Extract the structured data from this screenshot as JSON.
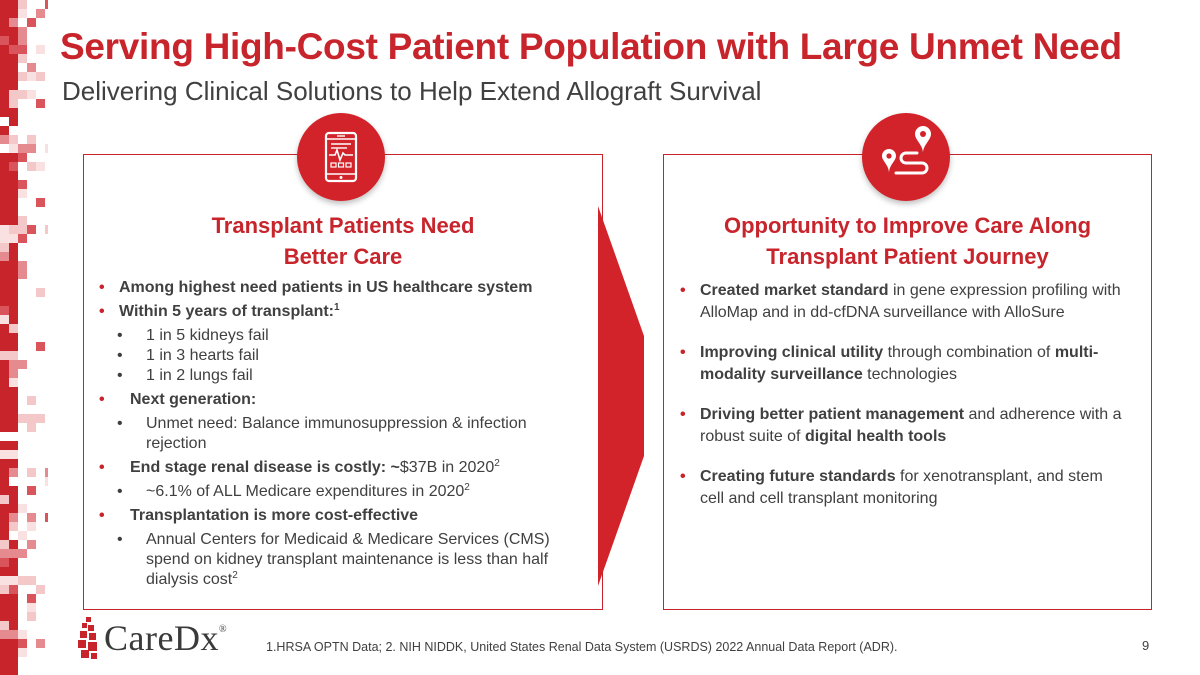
{
  "header": {
    "title": "Serving High-Cost Patient Population with Large Unmet Need",
    "subtitle": "Delivering Clinical Solutions to Help Extend Allograft Survival"
  },
  "left_panel": {
    "heading_line1": "Transplant Patients Need",
    "heading_line2": "Better Care",
    "icon": "mobile-health-monitor-icon",
    "items": {
      "i1": "Among highest need patients in US healthcare system",
      "i2": "Within 5 years of transplant:",
      "i2_sup": "1",
      "i2a": "1 in 5  kidneys fail",
      "i2b": "1 in 3  hearts fail",
      "i2c": "1 in 2  lungs fail",
      "i3": "Next generation:",
      "i3a": "Unmet need: Balance immunosuppression & infection rejection",
      "i4_bold": "End stage renal disease is costly: ~",
      "i4_rest": "$37B in 2020",
      "i4_sup": "2",
      "i4a": "~6.1% of ALL Medicare expenditures in 2020",
      "i4a_sup": "2",
      "i5": "Transplantation is more cost-effective",
      "i5a": "Annual Centers for Medicaid & Medicare Services (CMS) spend on kidney transplant maintenance is less than half dialysis cost",
      "i5a_sup": "2"
    }
  },
  "right_panel": {
    "heading_line1": "Opportunity to Improve Care Along",
    "heading_line2": "Transplant Patient Journey",
    "icon": "journey-route-pin-icon",
    "items": {
      "r1_bold": "Created market standard",
      "r1_rest": " in gene expression profiling with AlloMap and in dd-cfDNA surveillance with AlloSure",
      "r2_bold": "Improving clinical utility",
      "r2_mid": " through combination of ",
      "r2_bold2": "multi-modality surveillance",
      "r2_rest": " technologies",
      "r3_bold": "Driving better patient management",
      "r3_mid": " and adherence with a robust suite of ",
      "r3_bold2": "digital health tools",
      "r4_bold": "Creating future standards",
      "r4_rest": " for xenotransplant, and stem cell and cell transplant monitoring"
    }
  },
  "footer": {
    "logo_text": "CareDx",
    "logo_reg": "®",
    "footnote": "1.HRSA OPTN Data;  2. NIH NIDDK, United States Renal Data System (USRDS) 2022 Annual Data Report (ADR).",
    "page_number": "9"
  },
  "colors": {
    "accent": "#c8242c",
    "text": "#404040"
  }
}
